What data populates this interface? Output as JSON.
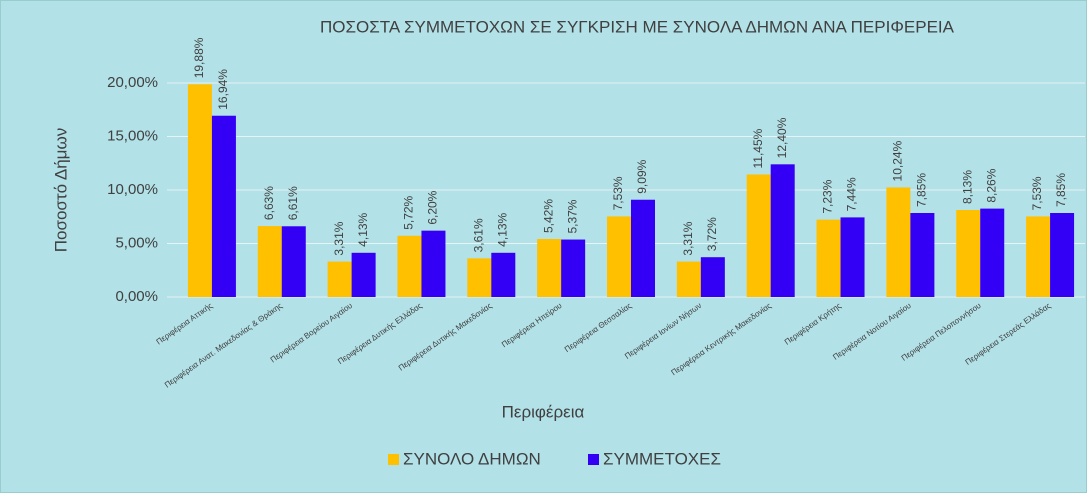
{
  "chart_data": {
    "type": "bar",
    "title": "ΠΟΣΟΣΤΑ ΣΥΜΜΕΤΟΧΩΝ ΣΕ ΣΥΓΚΡΙΣΗ ΜΕ ΣΥΝΟΛΑ ΔΗΜΩΝ ΑΝΑ ΠΕΡΙΦΕΡΕΙΑ",
    "x_label": "Περιφέρεια",
    "y_label": "Ποσοστό Δήμων",
    "categories": [
      "Περιφέρεια Αττικής",
      "Περιφέρεια Ανατ. Μακεδονίας & Θράκης",
      "Περιφέρεια Βορείου Αιγαίου",
      "Περιφέρεια Δυτικής Ελλάδας",
      "Περιφέρεια Δυτικής Μακεδονίας",
      "Περιφέρεια Ηπείρου",
      "Περιφέρεια Θεσσαλίας",
      "Περιφέρεια Ιονίων Νήσων",
      "Περιφέρεια Κεντρικής Μακεδονίας",
      "Περιφέρεια Κρήτης",
      "Περιφέρεια Νοτίου Αιγαίου",
      "Περιφέρεια Πελοποννήσου",
      "Περιφέρεια Στερεάς Ελλάδας"
    ],
    "series": [
      {
        "name": "ΣΥΝΟΛΟ ΔΗΜΩΝ",
        "color": "#ffc000",
        "values": [
          19.88,
          6.63,
          3.31,
          5.72,
          3.61,
          5.42,
          7.53,
          3.31,
          11.45,
          7.23,
          10.24,
          8.13,
          7.53
        ],
        "value_labels": [
          "19,88%",
          "6,63%",
          "3,31%",
          "5,72%",
          "3,61%",
          "5,42%",
          "7,53%",
          "3,31%",
          "11,45%",
          "7,23%",
          "10,24%",
          "8,13%",
          "7,53%"
        ]
      },
      {
        "name": "ΣΥΜΜΕΤΟΧΕΣ",
        "color": "#3300f5",
        "values": [
          16.94,
          6.61,
          4.13,
          6.2,
          4.13,
          5.37,
          9.09,
          3.72,
          12.4,
          7.44,
          7.85,
          8.26,
          7.85
        ],
        "value_labels": [
          "16,94%",
          "6,61%",
          "4,13%",
          "6,20%",
          "4,13%",
          "5,37%",
          "9,09%",
          "3,72%",
          "12,40%",
          "7,44%",
          "7,85%",
          "8,26%",
          "7,85%"
        ]
      }
    ],
    "ylim": [
      0,
      20
    ],
    "yticks": [
      {
        "value": 0,
        "label": "0,00%"
      },
      {
        "value": 5,
        "label": "5,00%"
      },
      {
        "value": 10,
        "label": "10,00%"
      },
      {
        "value": 15,
        "label": "15,00%"
      },
      {
        "value": 20,
        "label": "20,00%"
      }
    ],
    "grid": true,
    "legend": "bottom"
  }
}
